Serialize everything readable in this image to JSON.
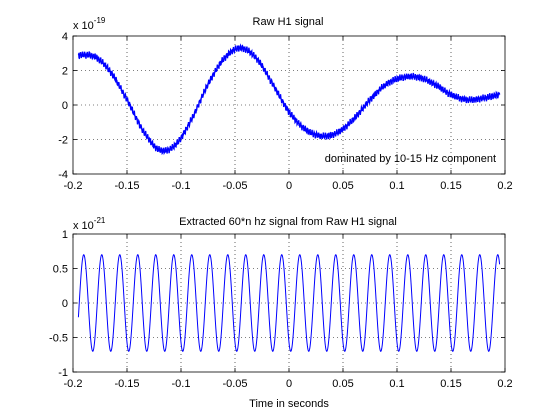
{
  "chart_data": [
    {
      "type": "line",
      "title": "Raw H1 signal",
      "xlabel": "",
      "ylabel": "",
      "exponent_label": {
        "base": "x 10",
        "power": "-19"
      },
      "annotation": "dominated by 10-15 Hz component",
      "xlim": [
        -0.2,
        0.2
      ],
      "ylim": [
        -4,
        4
      ],
      "x_ticks": [
        -0.2,
        -0.15,
        -0.1,
        -0.05,
        0,
        0.05,
        0.1,
        0.15,
        0.2
      ],
      "x_tick_labels": [
        "-0.2",
        "-0.15",
        "-0.1",
        "-0.05",
        "0",
        "0.05",
        "0.1",
        "0.15",
        "0.2"
      ],
      "y_ticks": [
        -4,
        -2,
        0,
        2,
        4
      ],
      "y_tick_labels": [
        "-4",
        "-2",
        "0",
        "2",
        "4"
      ],
      "grid": true,
      "color": "#0000ff",
      "series": [
        {
          "x": [
            -0.195,
            -0.18,
            -0.165,
            -0.15,
            -0.135,
            -0.12,
            -0.105,
            -0.09,
            -0.075,
            -0.06,
            -0.045,
            -0.03,
            -0.015,
            0,
            0.015,
            0.03,
            0.045,
            0.06,
            0.075,
            0.09,
            0.105,
            0.12,
            0.135,
            0.15,
            0.165,
            0.18,
            0.195
          ],
          "y": [
            2.9,
            2.8,
            1.9,
            0.3,
            -1.5,
            -2.6,
            -2.3,
            -0.8,
            1.2,
            2.7,
            3.3,
            2.7,
            1.2,
            -0.4,
            -1.4,
            -1.8,
            -1.6,
            -0.8,
            0.3,
            1.2,
            1.6,
            1.6,
            1.2,
            0.6,
            0.3,
            0.4,
            0.6
          ]
        }
      ]
    },
    {
      "type": "line",
      "title": "Extracted 60*n hz signal from Raw H1 signal",
      "xlabel": "Time in seconds",
      "ylabel": "",
      "exponent_label": {
        "base": "x 10",
        "power": "-21"
      },
      "xlim": [
        -0.2,
        0.2
      ],
      "ylim": [
        -1,
        1
      ],
      "x_ticks": [
        -0.2,
        -0.15,
        -0.1,
        -0.05,
        0,
        0.05,
        0.1,
        0.15,
        0.2
      ],
      "x_tick_labels": [
        "-0.2",
        "-0.15",
        "-0.1",
        "-0.05",
        "0",
        "0.05",
        "0.1",
        "0.15",
        "0.2"
      ],
      "y_ticks": [
        -1,
        -0.5,
        0,
        0.5,
        1
      ],
      "y_tick_labels": [
        "-1",
        "-0.5",
        "0",
        "0.5",
        "1"
      ],
      "grid": true,
      "color": "#0000ff",
      "series": [
        {
          "x_start": -0.195,
          "x_end": 0.195,
          "frequency_hz": 60,
          "amplitude": 0.7,
          "phase_at_start": -0.3
        }
      ]
    }
  ]
}
